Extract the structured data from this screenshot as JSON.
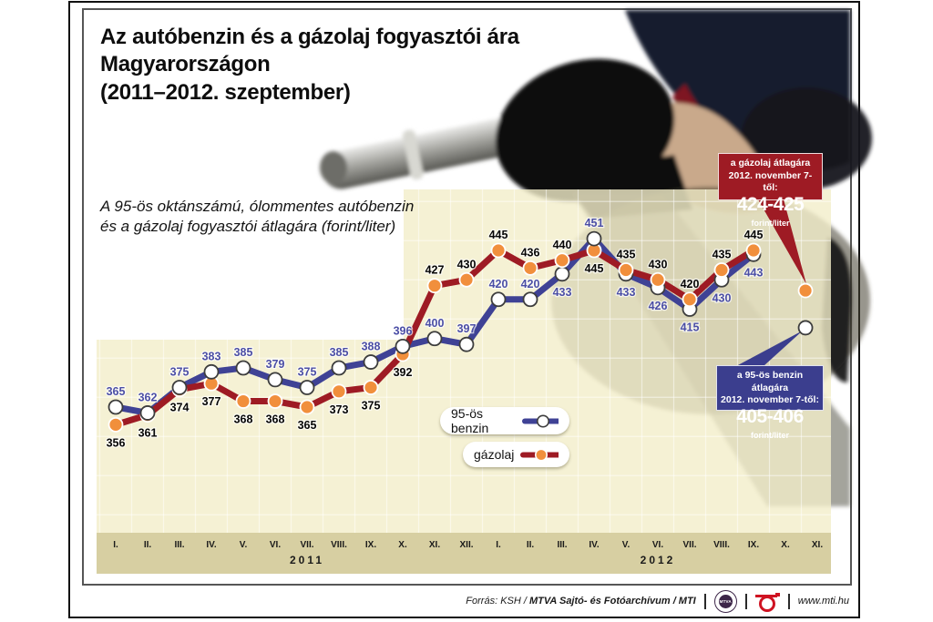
{
  "title": {
    "lines": [
      "Az autóbenzin és a gázolaj fogyasztói ára",
      "Magyarországon",
      "(2011–2012. szeptember)"
    ]
  },
  "subtitle": {
    "lines": [
      "A 95-ös oktánszámú, ólommentes autóbenzin",
      "és a gázolaj fogyasztói átlagára (forint/liter)"
    ]
  },
  "chart_data": {
    "type": "line",
    "unit": "forint/liter",
    "categories": [
      "I.",
      "II.",
      "III.",
      "IV.",
      "V.",
      "VI.",
      "VII.",
      "VIII.",
      "IX.",
      "X.",
      "XI.",
      "XII.",
      "I.",
      "II.",
      "III.",
      "IV.",
      "V.",
      "VI.",
      "VII.",
      "VIII.",
      "IX.",
      "X.",
      "XI."
    ],
    "year_groups": [
      {
        "label": "2011",
        "center_index": 6
      },
      {
        "label": "2012",
        "center_index": 17
      }
    ],
    "ylim": [
      300,
      476
    ],
    "grid": true,
    "legend_position": "center-bottom",
    "series": [
      {
        "name": "95-ös benzin",
        "color": "#3f4295",
        "marker_fill": "#ffffff",
        "marker_stroke": "#3d3d3d",
        "label_color": "#4b4ea6",
        "values": [
          365,
          362,
          375,
          383,
          385,
          379,
          375,
          385,
          388,
          396,
          400,
          397,
          420,
          420,
          433,
          451,
          433,
          426,
          415,
          430,
          443
        ],
        "label_below_indices": [
          14,
          16,
          17,
          18,
          19,
          20
        ]
      },
      {
        "name": "gázolaj",
        "color": "#9e1b24",
        "marker_fill": "#f18f3c",
        "marker_stroke": "#ffffff",
        "label_color": "#060606",
        "values": [
          356,
          361,
          374,
          377,
          368,
          368,
          365,
          373,
          375,
          392,
          427,
          430,
          445,
          436,
          440,
          445,
          435,
          430,
          420,
          435,
          445
        ],
        "label_below_indices": [
          0,
          1,
          2,
          3,
          4,
          5,
          6,
          7,
          8,
          9,
          15
        ]
      }
    ],
    "extra_points": [
      {
        "series_index": 1,
        "x_index": 21.63,
        "value": 424.5
      },
      {
        "series_index": 0,
        "x_index": 21.63,
        "value": 405.5
      }
    ]
  },
  "callouts": {
    "diesel": {
      "lines": [
        "a gázolaj átlagára",
        "2012. november 7-től:"
      ],
      "value": "424-425",
      "unit": "forint/liter",
      "color": "#9e1b24"
    },
    "benzin": {
      "lines": [
        "a 95-ös benzin átlagára",
        "2012. november 7-től:"
      ],
      "value": "405-406",
      "unit": "forint/liter",
      "color": "#3b3e8e"
    }
  },
  "footer": {
    "source_prefix": "Forrás: KSH /",
    "source_bold": "MTVA Sajtó- és Fotóarchívum",
    "source_suffix": "/ MTI",
    "mtva_logo_text": "MTVA",
    "website": "www.mti.hu"
  },
  "colors": {
    "plot_bg": "#f2edc9",
    "axis_strip": "#d7cfa2",
    "grid": "#ffffff"
  }
}
